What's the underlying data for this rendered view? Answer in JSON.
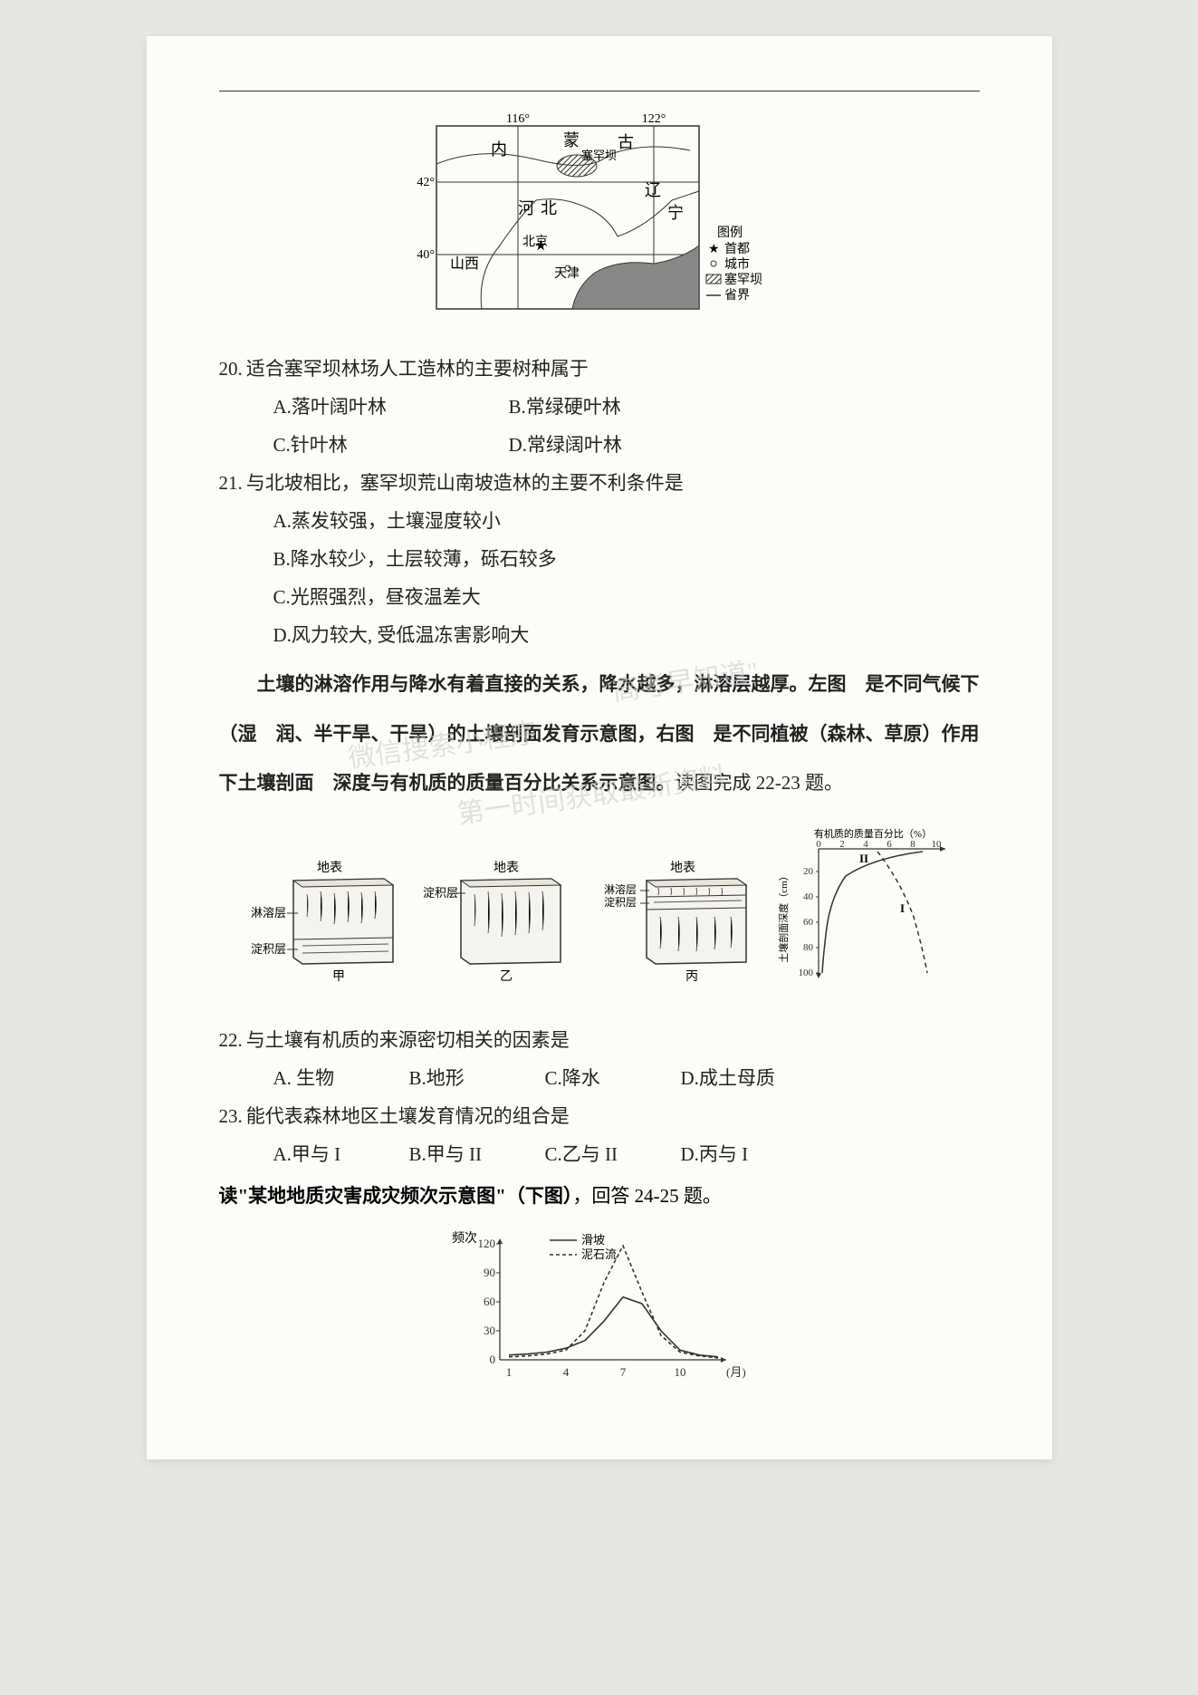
{
  "map": {
    "lon_ticks": [
      "116°",
      "122°"
    ],
    "lat_ticks": [
      "42°",
      "40°"
    ],
    "regions": [
      "内",
      "蒙",
      "古",
      "河",
      "北",
      "辽",
      "宁",
      "山西",
      "北京",
      "天津"
    ],
    "target_label": "塞罕坝",
    "legend_title": "图例",
    "legend_items": [
      "首都",
      "城市",
      "塞罕坝",
      "省界"
    ]
  },
  "q20": {
    "num": "20.",
    "text": "适合塞罕坝林场人工造林的主要树种属于",
    "A": "A.落叶阔叶林",
    "B": "B.常绿硬叶林",
    "C": "C.针叶林",
    "D": "D.常绿阔叶林"
  },
  "q21": {
    "num": "21.",
    "text": "与北坡相比，塞罕坝荒山南坡造林的主要不利条件是",
    "A": "A.蒸发较强，土壤湿度较小",
    "B": "B.降水较少，土层较薄，砾石较多",
    "C": "C.光照强烈，昼夜温差大",
    "D": "D.风力较大, 受低温冻害影响大"
  },
  "passage1": {
    "text": "土壤的淋溶作用与降水有着直接的关系，降水越多，淋溶层越厚。左图　是不同气候下（湿　润、半干旱、干旱）的土壤剖面发育示意图，右图　是不同植被（森林、草原）作用下土壤剖面　深度与有机质的质量百分比关系示意图。",
    "tail": "读图完成 22-23 题。"
  },
  "soil_diagrams": {
    "surface_label": "地表",
    "layers": {
      "linrong": "淋溶层",
      "dianji": "淀积层"
    },
    "labels": [
      "甲",
      "乙",
      "丙"
    ]
  },
  "organic_chart": {
    "title": "有机质的质量百分比（%）",
    "x_ticks": [
      "0",
      "2",
      "4",
      "6",
      "8",
      "10"
    ],
    "y_ticks": [
      "20",
      "40",
      "60",
      "80",
      "100"
    ],
    "y_label": "土壤剖面深度（cm）",
    "series": [
      "I",
      "II"
    ]
  },
  "q22": {
    "num": "22.",
    "text": "与土壤有机质的来源密切相关的因素是",
    "A": "A. 生物",
    "B": "B.地形",
    "C": "C.降水",
    "D": "D.成土母质"
  },
  "q23": {
    "num": "23.",
    "text": "能代表森林地区土壤发育情况的组合是",
    "A": "A.甲与 I",
    "B": "B.甲与 II",
    "C": "C.乙与 II",
    "D": "D.丙与 I"
  },
  "passage2": {
    "prefix": "读\"某地地质灾害成灾频次示意图\"（下图）",
    "tail": "，回答 24-25 题。"
  },
  "freq_chart": {
    "y_label": "频次",
    "y_ticks": [
      "0",
      "30",
      "60",
      "90",
      "120"
    ],
    "x_ticks": [
      "1",
      "4",
      "7",
      "10"
    ],
    "x_unit": "(月)",
    "series": {
      "solid": "滑坡",
      "dashed": "泥石流"
    },
    "landslide_points": [
      [
        1,
        5
      ],
      [
        2,
        6
      ],
      [
        3,
        8
      ],
      [
        4,
        12
      ],
      [
        5,
        20
      ],
      [
        6,
        40
      ],
      [
        7,
        65
      ],
      [
        8,
        58
      ],
      [
        9,
        30
      ],
      [
        10,
        10
      ],
      [
        11,
        5
      ],
      [
        12,
        3
      ]
    ],
    "debris_points": [
      [
        1,
        3
      ],
      [
        2,
        4
      ],
      [
        3,
        6
      ],
      [
        4,
        10
      ],
      [
        5,
        30
      ],
      [
        6,
        80
      ],
      [
        7,
        118
      ],
      [
        8,
        70
      ],
      [
        9,
        25
      ],
      [
        10,
        8
      ],
      [
        11,
        4
      ],
      [
        12,
        2
      ]
    ],
    "colors": {
      "axis": "#333333",
      "line": "#444444",
      "background": "#fdfcf8"
    }
  }
}
